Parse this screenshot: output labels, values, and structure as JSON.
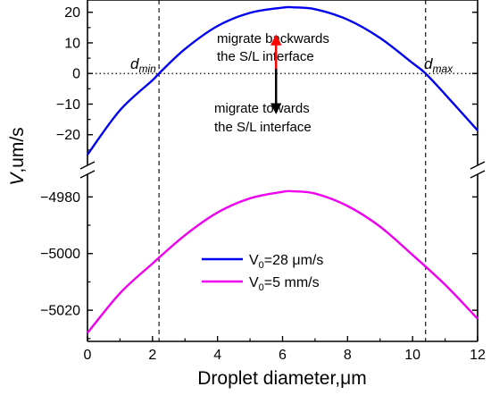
{
  "chart_data": {
    "type": "line",
    "broken_y_axis": true,
    "xlabel": "Droplet diameter,μm",
    "ylabel": "V,um/s",
    "xlim": [
      0,
      12
    ],
    "x_ticks": [
      "0",
      "2",
      "4",
      "6",
      "8",
      "10",
      "12"
    ],
    "upper_panel": {
      "ylim": [
        -30,
        24
      ],
      "y_ticks": [
        "20",
        "10",
        "0",
        "−10",
        "−20"
      ]
    },
    "lower_panel": {
      "ylim": [
        -5031,
        -4972
      ],
      "y_ticks": [
        "−4980",
        "−5000",
        "−5020"
      ]
    },
    "series": [
      {
        "name": "V₀=28 μm/s",
        "name_main": "V",
        "name_sub": "0",
        "name_rest": "=28 μm/s",
        "color": "#0000ee",
        "panel": "upper",
        "x": [
          0,
          1,
          2,
          2.2,
          3,
          4,
          5,
          6,
          6.3,
          7,
          8,
          9,
          10,
          10.4,
          11,
          12
        ],
        "y": [
          -26.5,
          -12.0,
          -2.2,
          0,
          8.0,
          15.5,
          19.8,
          21.5,
          21.6,
          21.0,
          17.6,
          11.6,
          3.4,
          0,
          -6.8,
          -18.6
        ]
      },
      {
        "name": "V₀=5 mm/s",
        "name_main": "V",
        "name_sub": "0",
        "name_rest": "=5 mm/s",
        "color": "#ee00ee",
        "panel": "lower",
        "x": [
          0,
          1,
          2,
          3,
          4,
          5,
          6,
          6.3,
          7,
          8,
          9,
          10,
          11,
          12
        ],
        "y": [
          -5028,
          -5014,
          -5003.5,
          -4993.5,
          -4985.5,
          -4980.5,
          -4978.2,
          -4978.0,
          -4978.8,
          -4983.2,
          -4990.5,
          -5000.5,
          -5011,
          -5023
        ]
      }
    ],
    "reference_lines": {
      "horizontal_dotted_y": 0,
      "vertical_dashed_x": [
        2.2,
        10.4
      ]
    },
    "labels": {
      "d_min_main": "d",
      "d_min_sub": "min",
      "d_max_main": "d",
      "d_max_sub": "max"
    },
    "annotations": {
      "up_line1": "migrate backwards",
      "up_line2": "the S/L interface",
      "down_line1": "migrate towards",
      "down_line2": "the S/L interface",
      "arrow_x": 5.8,
      "arrow_up_color": "#ff0000",
      "arrow_down_color": "#000000"
    },
    "legend_position": "lower-center",
    "grid": false
  }
}
